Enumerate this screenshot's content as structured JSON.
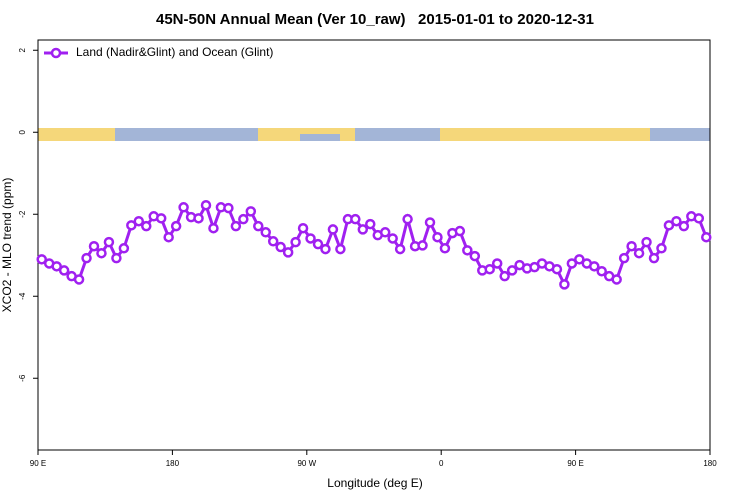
{
  "chart_data": {
    "type": "line",
    "title": "45N-50N Annual Mean (Ver 10_raw)   2015-01-01 to 2020-12-31",
    "xlabel": "Longitude (deg E)",
    "ylabel": "XCO2 - MLO trend (ppm)",
    "legend": "upper left",
    "xlim": [
      90,
      540
    ],
    "xticks": [
      {
        "value": 90,
        "label": "90 E"
      },
      180,
      {
        "value": 270,
        "label": "90 W"
      },
      {
        "value": 360,
        "label": "0"
      },
      {
        "value": 450,
        "label": "90 E"
      },
      {
        "value": 540,
        "label": "180"
      }
    ],
    "ylim": [
      -7.75,
      2.25
    ],
    "yticks": [
      2,
      0,
      -2,
      -4,
      -6
    ],
    "x": [
      92.5,
      97.5,
      102.5,
      107.5,
      112.5,
      117.5,
      122.5,
      127.5,
      132.5,
      137.5,
      142.5,
      147.5,
      152.5,
      157.5,
      162.5,
      167.5,
      172.5,
      177.5,
      182.5,
      187.5,
      192.5,
      197.5,
      202.5,
      207.5,
      212.5,
      217.5,
      222.5,
      227.5,
      232.5,
      237.5,
      242.5,
      247.5,
      252.5,
      257.5,
      262.5,
      267.5,
      272.5,
      277.5,
      282.5,
      287.5,
      292.5,
      297.5,
      302.5,
      307.5,
      312.5,
      317.5,
      322.5,
      327.5,
      332.5,
      337.5,
      342.5,
      347.5,
      352.5,
      357.5,
      362.5,
      367.5,
      372.5,
      377.5,
      382.5,
      387.5,
      392.5,
      397.5,
      402.5,
      407.5,
      412.5,
      417.5,
      422.5,
      427.5,
      432.5,
      437.5,
      442.5,
      447.5,
      452.5,
      457.5,
      462.5,
      467.5,
      472.5,
      477.5,
      482.5,
      487.5,
      492.5,
      497.5,
      502.5,
      507.5,
      512.5,
      517.5,
      522.5,
      527.5,
      532.5,
      537.5
    ],
    "series": [
      {
        "name": "Land (Nadir&Glint) and Ocean (Glint)",
        "color": "#a020f0",
        "values": [
          -3.1,
          -3.2,
          -3.27,
          -3.37,
          -3.51,
          -3.59,
          -3.07,
          -2.78,
          -2.95,
          -2.68,
          -3.07,
          -2.83,
          -2.27,
          -2.17,
          -2.29,
          -2.05,
          -2.1,
          -2.56,
          -2.29,
          -1.83,
          -2.07,
          -2.1,
          -1.78,
          -2.34,
          -1.83,
          -1.85,
          -2.29,
          -2.12,
          -1.93,
          -2.29,
          -2.44,
          -2.66,
          -2.8,
          -2.93,
          -2.68,
          -2.34,
          -2.59,
          -2.73,
          -2.85,
          -2.37,
          -2.85,
          -2.12,
          -2.12,
          -2.37,
          -2.24,
          -2.51,
          -2.44,
          -2.59,
          -2.85,
          -2.12,
          -2.78,
          -2.76,
          -2.2,
          -2.56,
          -2.83,
          -2.46,
          -2.41,
          -2.88,
          -3.02,
          -3.37,
          -3.34,
          -3.2,
          -3.51,
          -3.37,
          -3.24,
          -3.32,
          -3.29,
          -3.2,
          -3.27,
          -3.34,
          -3.71,
          -3.2,
          -3.1,
          -3.2,
          -3.27,
          -3.39,
          -3.51,
          -3.59,
          -3.07,
          -2.78,
          -2.95,
          -2.68,
          -3.07,
          -2.83,
          -2.27,
          -2.17,
          -2.29,
          -2.05,
          -2.1,
          -2.56
        ]
      }
    ]
  }
}
